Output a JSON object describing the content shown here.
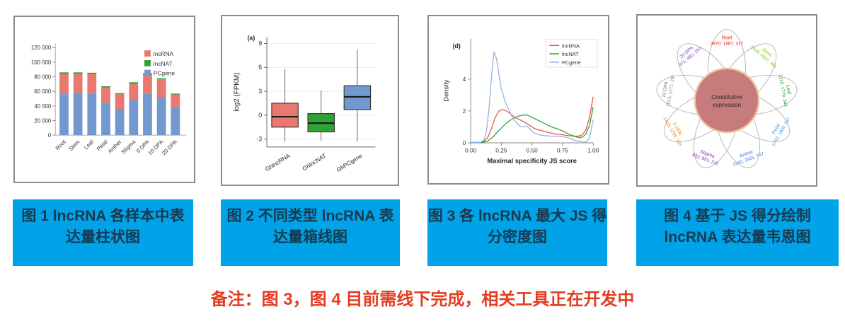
{
  "captions": [
    {
      "line1": "图 1 lncRNA 各样本中表",
      "line2": "达量柱状图"
    },
    {
      "line1": "图 2 不同类型 lncRNA 表",
      "line2": "达量箱线图"
    },
    {
      "line1": "图 3 各 lncRNA 最大 JS 得",
      "line2": "分密度图"
    },
    {
      "line1": "图 4 基于 JS 得分绘制",
      "line2": "lncRNA 表达量韦恩图"
    }
  ],
  "caption_style": {
    "background": "#00a2e8",
    "text_color": "#173a4e"
  },
  "note": {
    "text": "备注：图 3，图 4 目前需线下完成，相关工具正在开发中",
    "color": "#e53b1e"
  },
  "chart_data": [
    {
      "type": "bar",
      "stacked": true,
      "categories": [
        "Root",
        "Stem",
        "Leaf",
        "Petal",
        "Anther",
        "Stigma",
        "0 DPA",
        "10 DPA",
        "20 DPA"
      ],
      "series": [
        {
          "name": "PCgene",
          "color": "#7298d0",
          "values": [
            57000,
            58000,
            57000,
            44500,
            35500,
            48000,
            57000,
            52000,
            38500
          ]
        },
        {
          "name": "lncRNA",
          "color": "#e9796f",
          "values": [
            27000,
            26000,
            26500,
            21000,
            20500,
            22500,
            26500,
            24500,
            17000
          ]
        },
        {
          "name": "lncNAT",
          "color": "#2fa335",
          "values": [
            2000,
            2000,
            2000,
            1500,
            1500,
            2000,
            1500,
            1500,
            1500
          ]
        }
      ],
      "legend": [
        "lncRNA",
        "lncNAT",
        "PCgene"
      ],
      "ylim": [
        0,
        120000
      ],
      "ytick_values": [
        0,
        20000,
        40000,
        60000,
        80000,
        100000,
        120000
      ],
      "ytick_labels": [
        "0",
        "20 000",
        "40 000",
        "60 000",
        "80 000",
        "100 000",
        "120 000"
      ]
    },
    {
      "type": "boxplot",
      "panel_label": "(a)",
      "ylabel": "log2 (FPKM)",
      "ylim": [
        -4,
        9.8
      ],
      "yticks": [
        -3,
        0,
        3,
        6,
        9
      ],
      "boxes": [
        {
          "label": "GhlncRNA",
          "color": "#e9796f",
          "low": -3.3,
          "q1": -1.5,
          "median": -0.2,
          "q3": 1.5,
          "high": 5.8
        },
        {
          "label": "GhlncNAT",
          "color": "#2fa335",
          "low": -3.2,
          "q1": -2.1,
          "median": -1.0,
          "q3": 0.2,
          "high": 3.1
        },
        {
          "label": "GhPCgene",
          "color": "#7298d0",
          "low": -3.3,
          "q1": 0.7,
          "median": 2.3,
          "q3": 3.7,
          "high": 8.2
        }
      ]
    },
    {
      "type": "line",
      "panel_label": "(d)",
      "xlabel": "Maximal specificity JS score",
      "ylabel": "Density",
      "xlim": [
        0,
        1
      ],
      "xtick_values": [
        0,
        0.25,
        0.5,
        0.75,
        1
      ],
      "xtick_labels": [
        "0.00",
        "0.25",
        "0.50",
        "0.75",
        "1.00"
      ],
      "ylim": [
        0,
        6.2
      ],
      "yticks": [
        0,
        2,
        4
      ],
      "legend": [
        "lncRNA",
        "lncNAT",
        "PCgene"
      ],
      "series": [
        {
          "name": "lncRNA",
          "color": "#e8564a",
          "x": [
            0,
            0.08,
            0.11,
            0.14,
            0.17,
            0.2,
            0.23,
            0.26,
            0.29,
            0.32,
            0.36,
            0.4,
            0.44,
            0.48,
            0.52,
            0.56,
            0.6,
            0.65,
            0.7,
            0.75,
            0.8,
            0.85,
            0.88,
            0.91,
            0.94,
            0.97,
            1.0
          ],
          "y": [
            0.02,
            0.02,
            0.1,
            0.35,
            0.9,
            1.6,
            2.0,
            2.1,
            2.0,
            1.85,
            1.6,
            1.45,
            1.3,
            1.1,
            0.9,
            0.8,
            0.72,
            0.62,
            0.55,
            0.5,
            0.45,
            0.42,
            0.42,
            0.5,
            0.8,
            1.6,
            2.9
          ]
        },
        {
          "name": "lncNAT",
          "color": "#2fa335",
          "x": [
            0,
            0.1,
            0.14,
            0.18,
            0.22,
            0.26,
            0.3,
            0.34,
            0.38,
            0.42,
            0.46,
            0.5,
            0.54,
            0.58,
            0.62,
            0.66,
            0.7,
            0.75,
            0.8,
            0.85,
            0.88,
            0.91,
            0.94,
            0.97,
            1.0
          ],
          "y": [
            0.02,
            0.03,
            0.12,
            0.35,
            0.7,
            1.0,
            1.3,
            1.5,
            1.65,
            1.73,
            1.75,
            1.6,
            1.45,
            1.3,
            1.15,
            1.0,
            0.9,
            0.75,
            0.55,
            0.4,
            0.33,
            0.35,
            0.55,
            1.1,
            2.25
          ]
        },
        {
          "name": "PCgene",
          "color": "#8fb4e3",
          "x": [
            0,
            0.08,
            0.11,
            0.13,
            0.15,
            0.17,
            0.19,
            0.21,
            0.23,
            0.25,
            0.28,
            0.31,
            0.34,
            0.37,
            0.4,
            0.43,
            0.46,
            0.49,
            0.52,
            0.56,
            0.6,
            0.65,
            0.7,
            0.75,
            0.8,
            0.85,
            0.9,
            0.94,
            0.97,
            1.0
          ],
          "y": [
            0.02,
            0.03,
            0.2,
            0.8,
            2.2,
            4.2,
            5.7,
            5.3,
            4.3,
            3.4,
            2.6,
            2.1,
            1.6,
            1.3,
            1.05,
            1.0,
            1.05,
            0.8,
            0.6,
            0.5,
            0.45,
            0.43,
            0.42,
            0.4,
            0.3,
            0.15,
            0.07,
            0.05,
            0.3,
            1.45
          ]
        }
      ]
    },
    {
      "type": "venn-flower",
      "center_label_line1": "Constitutive",
      "center_label_line2": "expression",
      "center_fill": "#c87b7d",
      "center_stroke": "#eccaa2",
      "petal_stroke": "#b8b8b8",
      "petals": [
        {
          "name": "Root",
          "values": "3970; 1887; 317",
          "color": "#e8140c"
        },
        {
          "name": "Stem",
          "values": "3918; 4392; 365",
          "color": "#86c320"
        },
        {
          "name": "Leaf",
          "values": "2120; 1779; 343",
          "color": "#16982b"
        },
        {
          "name": "Petal",
          "values": "1782; 1906; 287",
          "color": "#3f9fdc"
        },
        {
          "name": "Anther",
          "values": "3140; 3925; 747",
          "color": "#4a77d6"
        },
        {
          "name": "Stigma",
          "values": "832; 991; 215",
          "color": "#7e3a96"
        },
        {
          "name": "0 DPA",
          "values": "1403; 1256; 185",
          "color": "#e2820f"
        },
        {
          "name": "10 DPA",
          "values": "1013; 1271; 297",
          "color": "#8c7a72"
        },
        {
          "name": "20 DPA",
          "values": "971; 882; 250",
          "color": "#7b4bbf"
        }
      ]
    }
  ]
}
